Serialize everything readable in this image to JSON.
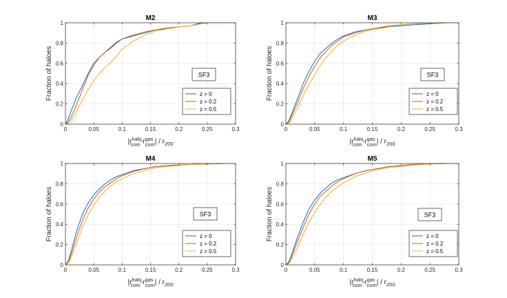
{
  "chart_data": [
    {
      "type": "line",
      "title": "M2",
      "ylabel": "Fraction of haloes",
      "xlabel": {
        "r": "|r",
        "halo_sup": "halo",
        "com_sub": "com",
        "dash_r": "-r",
        "gas_sup": "gas",
        "com_sub2": "com",
        "div": "| / r",
        "sub200": "200"
      },
      "xlim": [
        0,
        0.3
      ],
      "ylim": [
        0,
        1
      ],
      "xticks": [
        "0",
        "0.05",
        "0.1",
        "0.15",
        "0.2",
        "0.25",
        "0.3"
      ],
      "yticks": [
        "0",
        "0.2",
        "0.4",
        "0.6",
        "0.8",
        "1"
      ],
      "annotation": "SF3",
      "series": [
        {
          "name": "z = 0",
          "color": "#0072BD",
          "x": [
            0,
            0.005,
            0.01,
            0.015,
            0.02,
            0.03,
            0.04,
            0.05,
            0.06,
            0.07,
            0.08,
            0.09,
            0.1,
            0.12,
            0.14,
            0.16,
            0.18,
            0.2,
            0.22,
            0.24,
            0.3
          ],
          "y": [
            0,
            0.05,
            0.13,
            0.2,
            0.27,
            0.38,
            0.5,
            0.6,
            0.66,
            0.71,
            0.75,
            0.8,
            0.84,
            0.87,
            0.9,
            0.93,
            0.94,
            0.96,
            0.97,
            1.0,
            1.0
          ]
        },
        {
          "name": "z = 0.2",
          "color": "#D95319",
          "x": [
            0,
            0.005,
            0.01,
            0.015,
            0.02,
            0.03,
            0.04,
            0.05,
            0.06,
            0.07,
            0.08,
            0.09,
            0.1,
            0.12,
            0.14,
            0.16,
            0.18,
            0.2,
            0.22,
            0.25,
            0.3
          ],
          "y": [
            0,
            0.02,
            0.07,
            0.13,
            0.2,
            0.34,
            0.48,
            0.58,
            0.66,
            0.71,
            0.76,
            0.81,
            0.84,
            0.88,
            0.91,
            0.93,
            0.95,
            0.96,
            0.97,
            1.0,
            1.0
          ]
        },
        {
          "name": "z = 0.5",
          "color": "#EDB120",
          "x": [
            0,
            0.005,
            0.01,
            0.015,
            0.02,
            0.03,
            0.04,
            0.05,
            0.06,
            0.07,
            0.08,
            0.09,
            0.1,
            0.12,
            0.14,
            0.16,
            0.18,
            0.2,
            0.22,
            0.25,
            0.3
          ],
          "y": [
            0,
            0.01,
            0.04,
            0.08,
            0.13,
            0.24,
            0.34,
            0.43,
            0.5,
            0.56,
            0.61,
            0.67,
            0.74,
            0.82,
            0.88,
            0.92,
            0.94,
            0.96,
            0.97,
            1.0,
            1.0
          ]
        }
      ]
    },
    {
      "type": "line",
      "title": "M3",
      "ylabel": "Fraction of haloes",
      "xlabel": {
        "r": "|r",
        "halo_sup": "halo",
        "com_sub": "com",
        "dash_r": "-r",
        "gas_sup": "gas",
        "com_sub2": "com",
        "div": "| / r",
        "sub200": "200"
      },
      "xlim": [
        0,
        0.3
      ],
      "ylim": [
        0,
        1
      ],
      "xticks": [
        "0",
        "0.05",
        "0.1",
        "0.15",
        "0.2",
        "0.25",
        "0.3"
      ],
      "yticks": [
        "0",
        "0.2",
        "0.4",
        "0.6",
        "0.8",
        "1"
      ],
      "annotation": "SF3",
      "series": [
        {
          "name": "z = 0",
          "color": "#0072BD",
          "x": [
            0,
            0.005,
            0.01,
            0.02,
            0.03,
            0.04,
            0.05,
            0.06,
            0.07,
            0.08,
            0.09,
            0.1,
            0.12,
            0.14,
            0.16,
            0.18,
            0.2,
            0.22,
            0.25,
            0.28,
            0.3
          ],
          "y": [
            0,
            0.03,
            0.1,
            0.25,
            0.4,
            0.52,
            0.62,
            0.7,
            0.75,
            0.8,
            0.84,
            0.87,
            0.91,
            0.93,
            0.95,
            0.96,
            0.97,
            0.98,
            0.99,
            1.0,
            1.0
          ]
        },
        {
          "name": "z = 0.2",
          "color": "#D95319",
          "x": [
            0,
            0.005,
            0.01,
            0.02,
            0.03,
            0.04,
            0.05,
            0.06,
            0.07,
            0.08,
            0.09,
            0.1,
            0.12,
            0.14,
            0.16,
            0.18,
            0.2,
            0.22,
            0.25,
            0.28,
            0.3
          ],
          "y": [
            0,
            0.02,
            0.08,
            0.21,
            0.35,
            0.47,
            0.57,
            0.66,
            0.72,
            0.78,
            0.82,
            0.86,
            0.9,
            0.93,
            0.95,
            0.97,
            0.98,
            0.99,
            0.995,
            1.0,
            1.0
          ]
        },
        {
          "name": "z = 0.5",
          "color": "#EDB120",
          "x": [
            0,
            0.005,
            0.01,
            0.02,
            0.03,
            0.04,
            0.05,
            0.06,
            0.07,
            0.08,
            0.09,
            0.1,
            0.12,
            0.14,
            0.16,
            0.18,
            0.2,
            0.22,
            0.25,
            0.28,
            0.3
          ],
          "y": [
            0,
            0.01,
            0.05,
            0.16,
            0.28,
            0.39,
            0.49,
            0.58,
            0.66,
            0.72,
            0.78,
            0.82,
            0.88,
            0.92,
            0.94,
            0.96,
            0.98,
            0.99,
            0.995,
            1.0,
            1.0
          ]
        }
      ]
    },
    {
      "type": "line",
      "title": "M4",
      "ylabel": "Fraction of haloes",
      "xlabel": {
        "r": "|r",
        "halo_sup": "halo",
        "com_sub": "com",
        "dash_r": "-r",
        "gas_sup": "gas",
        "com_sub2": "com",
        "div": "| / r",
        "sub200": "200"
      },
      "xlim": [
        0,
        0.3
      ],
      "ylim": [
        0,
        1
      ],
      "xticks": [
        "0",
        "0.05",
        "0.1",
        "0.15",
        "0.2",
        "0.25",
        "0.3"
      ],
      "yticks": [
        "0",
        "0.2",
        "0.4",
        "0.6",
        "0.8",
        "1"
      ],
      "annotation": "SF3",
      "series": [
        {
          "name": "z = 0",
          "color": "#0072BD",
          "x": [
            0,
            0.005,
            0.01,
            0.02,
            0.03,
            0.04,
            0.05,
            0.06,
            0.07,
            0.08,
            0.09,
            0.1,
            0.12,
            0.14,
            0.16,
            0.18,
            0.2,
            0.22,
            0.25,
            0.28,
            0.3
          ],
          "y": [
            0,
            0.04,
            0.13,
            0.34,
            0.5,
            0.61,
            0.69,
            0.75,
            0.8,
            0.84,
            0.87,
            0.89,
            0.93,
            0.95,
            0.97,
            0.98,
            0.985,
            0.99,
            0.995,
            1.0,
            1.0
          ]
        },
        {
          "name": "z = 0.2",
          "color": "#D95319",
          "x": [
            0,
            0.005,
            0.01,
            0.02,
            0.03,
            0.04,
            0.05,
            0.06,
            0.07,
            0.08,
            0.09,
            0.1,
            0.12,
            0.14,
            0.16,
            0.18,
            0.2,
            0.22,
            0.25,
            0.28,
            0.3
          ],
          "y": [
            0,
            0.03,
            0.1,
            0.28,
            0.44,
            0.56,
            0.65,
            0.72,
            0.77,
            0.81,
            0.85,
            0.88,
            0.92,
            0.95,
            0.97,
            0.98,
            0.985,
            0.99,
            0.995,
            1.0,
            1.0
          ]
        },
        {
          "name": "z = 0.5",
          "color": "#EDB120",
          "x": [
            0,
            0.005,
            0.01,
            0.02,
            0.03,
            0.04,
            0.05,
            0.06,
            0.07,
            0.08,
            0.09,
            0.1,
            0.12,
            0.14,
            0.16,
            0.18,
            0.2,
            0.22,
            0.25,
            0.28,
            0.3
          ],
          "y": [
            0,
            0.02,
            0.07,
            0.22,
            0.37,
            0.49,
            0.59,
            0.67,
            0.73,
            0.78,
            0.82,
            0.85,
            0.9,
            0.93,
            0.96,
            0.97,
            0.98,
            0.99,
            0.995,
            1.0,
            1.0
          ]
        }
      ]
    },
    {
      "type": "line",
      "title": "M5",
      "ylabel": "Fraction of haloes",
      "xlabel": {
        "r": "|r",
        "halo_sup": "halo",
        "com_sub": "com",
        "dash_r": "-r",
        "gas_sup": "gas",
        "com_sub2": "com",
        "div": "| / r",
        "sub200": "200"
      },
      "xlim": [
        0,
        0.3
      ],
      "ylim": [
        0,
        1
      ],
      "xticks": [
        "0",
        "0.05",
        "0.1",
        "0.15",
        "0.2",
        "0.25",
        "0.3"
      ],
      "yticks": [
        "0",
        "0.2",
        "0.4",
        "0.6",
        "0.8",
        "1"
      ],
      "annotation": "SF3",
      "series": [
        {
          "name": "z = 0",
          "color": "#0072BD",
          "x": [
            0,
            0.005,
            0.01,
            0.02,
            0.03,
            0.04,
            0.05,
            0.06,
            0.07,
            0.08,
            0.09,
            0.1,
            0.12,
            0.14,
            0.16,
            0.18,
            0.2,
            0.22,
            0.25,
            0.28,
            0.3
          ],
          "y": [
            0,
            0.03,
            0.1,
            0.27,
            0.42,
            0.55,
            0.64,
            0.71,
            0.76,
            0.81,
            0.84,
            0.86,
            0.9,
            0.93,
            0.95,
            0.97,
            0.98,
            0.99,
            0.995,
            1.0,
            1.0
          ]
        },
        {
          "name": "z = 0.2",
          "color": "#D95319",
          "x": [
            0,
            0.005,
            0.01,
            0.02,
            0.03,
            0.04,
            0.05,
            0.06,
            0.07,
            0.08,
            0.09,
            0.1,
            0.12,
            0.14,
            0.16,
            0.18,
            0.2,
            0.22,
            0.25,
            0.28,
            0.3
          ],
          "y": [
            0,
            0.02,
            0.08,
            0.23,
            0.37,
            0.5,
            0.6,
            0.68,
            0.73,
            0.78,
            0.82,
            0.85,
            0.9,
            0.93,
            0.95,
            0.97,
            0.98,
            0.99,
            0.995,
            1.0,
            1.0
          ]
        },
        {
          "name": "z = 0.5",
          "color": "#EDB120",
          "x": [
            0,
            0.005,
            0.01,
            0.02,
            0.03,
            0.04,
            0.05,
            0.06,
            0.07,
            0.08,
            0.09,
            0.1,
            0.12,
            0.14,
            0.16,
            0.18,
            0.2,
            0.22,
            0.25,
            0.28,
            0.3
          ],
          "y": [
            0,
            0.01,
            0.05,
            0.17,
            0.3,
            0.42,
            0.52,
            0.6,
            0.67,
            0.73,
            0.77,
            0.81,
            0.87,
            0.91,
            0.94,
            0.96,
            0.97,
            0.985,
            0.995,
            1.0,
            1.0
          ]
        }
      ]
    }
  ]
}
